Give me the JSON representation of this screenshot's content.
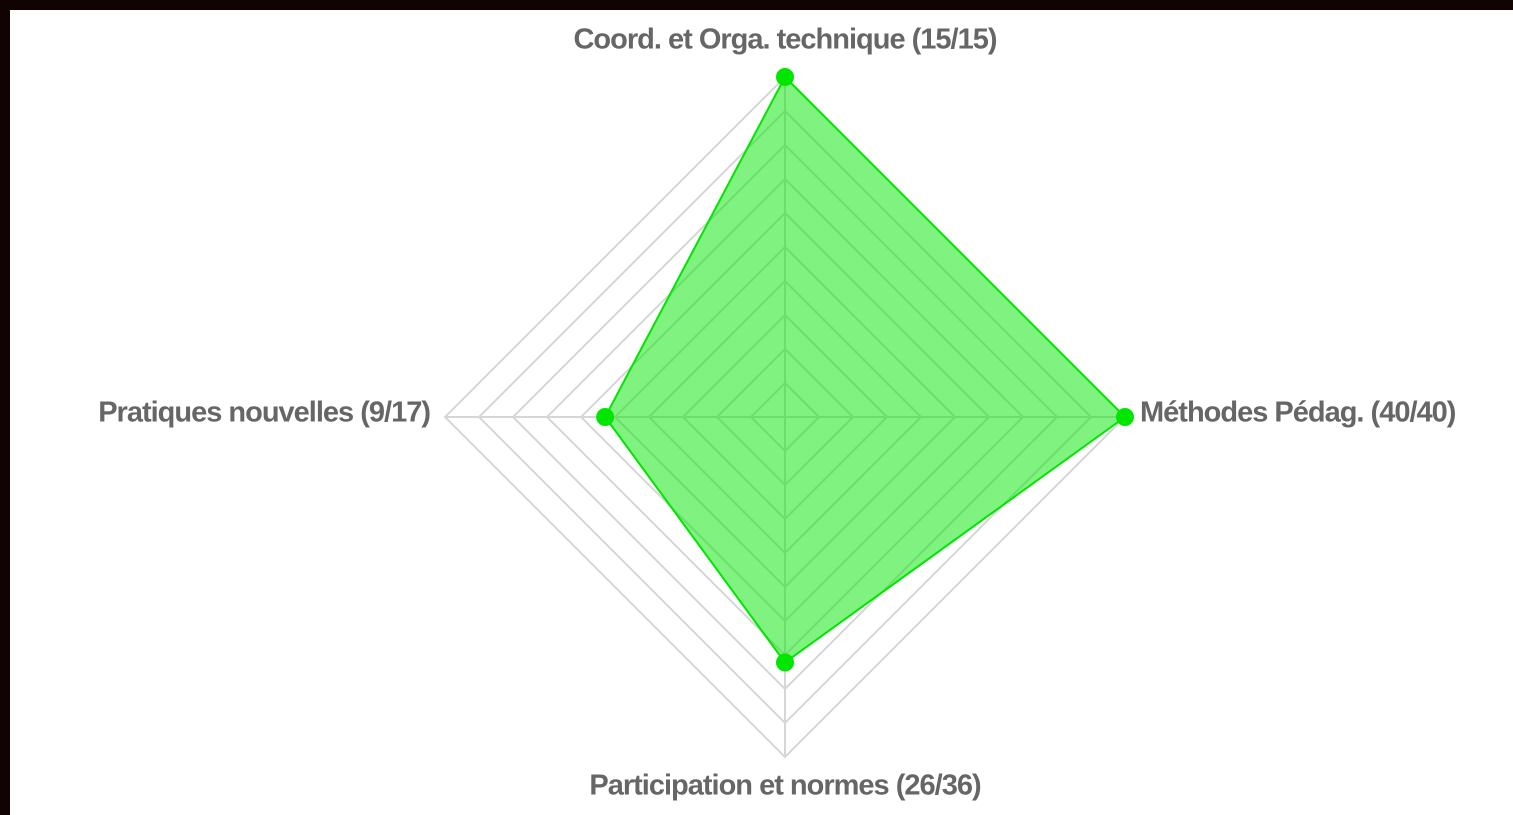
{
  "chart_data": {
    "type": "radar",
    "categories": [
      "Coord. et Orga. technique (15/15)",
      "Méthodes Pédag. (40/40)",
      "Participation et normes (26/36)",
      "Pratiques nouvelles (9/17)"
    ],
    "values": [
      100,
      100,
      72.2,
      52.9
    ],
    "color": "#00e600",
    "rlim": [
      0,
      100
    ],
    "rticks": [
      10,
      20,
      30,
      40,
      50,
      60,
      70,
      80,
      90,
      100
    ],
    "grid": true
  }
}
